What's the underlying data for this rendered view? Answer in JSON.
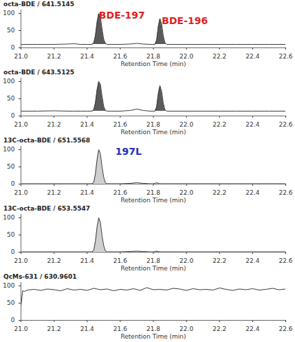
{
  "chart_data": [
    {
      "type": "line",
      "title": "octa-BDE / 641.5145",
      "x_label": "Retention Time (min)",
      "x": [
        21.0,
        21.1,
        21.2,
        21.28,
        21.32,
        21.36,
        21.4,
        21.43,
        21.44,
        21.45,
        21.46,
        21.47,
        21.48,
        21.49,
        21.5,
        21.51,
        21.52,
        21.55,
        21.6,
        21.66,
        21.7,
        21.74,
        21.78,
        21.8,
        21.81,
        21.82,
        21.83,
        21.84,
        21.85,
        21.86,
        21.87,
        21.88,
        21.92,
        22.0,
        22.1,
        22.2,
        22.3,
        22.4,
        22.5,
        22.6
      ],
      "values": [
        10,
        10,
        10,
        11,
        12,
        10,
        10,
        10,
        14,
        35,
        75,
        100,
        90,
        55,
        25,
        13,
        10,
        10,
        10,
        11,
        13,
        11,
        10,
        10,
        10,
        22,
        62,
        85,
        70,
        35,
        15,
        10,
        10,
        10,
        10,
        10,
        10,
        10,
        10,
        10
      ],
      "filled_ranges": [
        [
          21.43,
          21.52
        ],
        [
          21.81,
          21.88
        ]
      ],
      "color": "#5a5a5a",
      "xlim": [
        21.0,
        22.6
      ],
      "xticks": [
        {
          "value": 21.0,
          "label": "21.0"
        },
        {
          "value": 21.2,
          "label": "21.2"
        },
        {
          "value": 21.4,
          "label": "21.4"
        },
        {
          "value": 21.6,
          "label": "21.6"
        },
        {
          "value": 21.8,
          "label": "21.8"
        },
        {
          "value": 22.0,
          "label": "22.0"
        },
        {
          "value": 22.2,
          "label": "22.2"
        },
        {
          "value": 22.4,
          "label": "22.4"
        },
        {
          "value": 22.6,
          "label": "22.6"
        }
      ],
      "ylim": [
        0,
        110
      ],
      "yticks": [
        0,
        50,
        100
      ],
      "annotations": [
        {
          "text": "BDE-197",
          "x": 21.61,
          "y": 94,
          "color": "#e02020"
        },
        {
          "text": "BDE-196",
          "x": 21.99,
          "y": 78,
          "color": "#e02020"
        }
      ]
    },
    {
      "type": "line",
      "title": "octa-BDE / 643.5125",
      "x_label": "Retention Time (min)",
      "x": [
        21.0,
        21.1,
        21.2,
        21.28,
        21.32,
        21.36,
        21.4,
        21.43,
        21.44,
        21.45,
        21.46,
        21.47,
        21.48,
        21.49,
        21.5,
        21.51,
        21.52,
        21.55,
        21.6,
        21.66,
        21.7,
        21.74,
        21.78,
        21.8,
        21.81,
        21.82,
        21.83,
        21.84,
        21.85,
        21.86,
        21.87,
        21.88,
        21.92,
        22.0,
        22.1,
        22.2,
        22.3,
        22.4,
        22.5,
        22.6
      ],
      "values": [
        14,
        14,
        15,
        14,
        14,
        14,
        14,
        14,
        18,
        38,
        76,
        100,
        92,
        58,
        28,
        16,
        14,
        14,
        14,
        16,
        20,
        16,
        14,
        14,
        14,
        26,
        65,
        88,
        72,
        38,
        18,
        14,
        14,
        14,
        14,
        14,
        14,
        14,
        14,
        14
      ],
      "filled_ranges": [
        [
          21.43,
          21.52
        ],
        [
          21.81,
          21.88
        ]
      ],
      "color": "#5a5a5a",
      "xlim": [
        21.0,
        22.6
      ],
      "xticks": [
        {
          "value": 21.0,
          "label": "21.0"
        },
        {
          "value": 21.2,
          "label": "21.2"
        },
        {
          "value": 21.4,
          "label": "21.4"
        },
        {
          "value": 21.6,
          "label": "21.6"
        },
        {
          "value": 21.8,
          "label": "21.8"
        },
        {
          "value": 22.0,
          "label": "22.0"
        },
        {
          "value": 22.2,
          "label": "22.2"
        },
        {
          "value": 22.4,
          "label": "22.4"
        },
        {
          "value": 22.6,
          "label": "22.6"
        }
      ],
      "ylim": [
        0,
        110
      ],
      "yticks": [
        0,
        50,
        100
      ]
    },
    {
      "type": "line",
      "title": "13C-octa-BDE / 651.5568",
      "x_label": "Retention Time (min)",
      "x": [
        21.0,
        21.1,
        21.2,
        21.28,
        21.32,
        21.36,
        21.4,
        21.43,
        21.44,
        21.45,
        21.46,
        21.47,
        21.48,
        21.49,
        21.5,
        21.51,
        21.52,
        21.55,
        21.6,
        21.66,
        21.7,
        21.74,
        21.78,
        21.8,
        21.81,
        21.82,
        21.83,
        21.84,
        21.85,
        21.86,
        21.87,
        21.88,
        21.92,
        22.0,
        22.1,
        22.2,
        22.3,
        22.4,
        22.5,
        22.6
      ],
      "values": [
        1,
        1,
        1,
        1,
        1,
        1,
        1,
        1,
        5,
        30,
        72,
        100,
        88,
        50,
        20,
        4,
        1,
        1,
        1,
        2,
        4,
        2,
        1,
        1,
        2,
        4,
        2,
        1,
        1,
        1,
        1,
        1,
        1,
        1,
        1,
        1,
        1,
        1,
        1,
        1
      ],
      "filled_ranges": [
        [
          21.43,
          21.52
        ]
      ],
      "color": "#cfcfcf",
      "xlim": [
        21.0,
        22.6
      ],
      "xticks": [
        {
          "value": 21.0,
          "label": "21.0"
        },
        {
          "value": 21.2,
          "label": "21.2"
        },
        {
          "value": 21.4,
          "label": "21.4"
        },
        {
          "value": 21.6,
          "label": "21.6"
        },
        {
          "value": 21.8,
          "label": "21.8"
        },
        {
          "value": 22.0,
          "label": "22.0"
        },
        {
          "value": 22.2,
          "label": "22.2"
        },
        {
          "value": 22.4,
          "label": "22.4"
        },
        {
          "value": 22.6,
          "label": "22.6"
        }
      ],
      "ylim": [
        0,
        110
      ],
      "yticks": [
        0,
        50,
        100
      ],
      "annotations": [
        {
          "text": "197L",
          "x": 21.65,
          "y": 94,
          "color": "#2030c0"
        }
      ]
    },
    {
      "type": "line",
      "title": "13C-octa-BDE / 653.5547",
      "x_label": "Retention Time (min)",
      "x": [
        21.0,
        21.1,
        21.2,
        21.28,
        21.32,
        21.36,
        21.4,
        21.43,
        21.44,
        21.45,
        21.46,
        21.47,
        21.48,
        21.49,
        21.5,
        21.51,
        21.52,
        21.55,
        21.6,
        21.66,
        21.7,
        21.74,
        21.78,
        21.8,
        21.81,
        21.82,
        21.83,
        21.84,
        21.85,
        21.86,
        21.87,
        21.88,
        21.92,
        22.0,
        22.1,
        22.2,
        22.3,
        22.4,
        22.5,
        22.6
      ],
      "values": [
        1,
        1,
        1,
        1,
        1,
        1,
        1,
        1,
        6,
        32,
        74,
        100,
        86,
        48,
        19,
        4,
        1,
        1,
        1,
        2,
        3,
        2,
        1,
        1,
        2,
        3,
        2,
        1,
        1,
        1,
        1,
        1,
        1,
        1,
        1,
        1,
        1,
        1,
        1,
        1
      ],
      "filled_ranges": [
        [
          21.43,
          21.52
        ]
      ],
      "color": "#cfcfcf",
      "xlim": [
        21.0,
        22.6
      ],
      "xticks": [
        {
          "value": 21.0,
          "label": "21.0"
        },
        {
          "value": 21.2,
          "label": "21.2"
        },
        {
          "value": 21.4,
          "label": "21.4"
        },
        {
          "value": 21.6,
          "label": "21.6"
        },
        {
          "value": 21.8,
          "label": "21.8"
        },
        {
          "value": 22.0,
          "label": "22.0"
        },
        {
          "value": 22.2,
          "label": "22.2"
        },
        {
          "value": 22.4,
          "label": "22.4"
        },
        {
          "value": 22.6,
          "label": "22.6"
        }
      ],
      "ylim": [
        0,
        110
      ],
      "yticks": [
        0,
        50,
        100
      ]
    },
    {
      "type": "line",
      "title": "QcMs-631 / 630.9601",
      "x_label": "Retention Time (min)",
      "x": [
        21.0,
        21.01,
        21.02,
        21.04,
        21.08,
        21.12,
        21.16,
        21.2,
        21.24,
        21.28,
        21.32,
        21.36,
        21.4,
        21.44,
        21.48,
        21.52,
        21.56,
        21.6,
        21.64,
        21.68,
        21.72,
        21.76,
        21.8,
        21.84,
        21.88,
        21.92,
        21.96,
        22.0,
        22.04,
        22.08,
        22.12,
        22.16,
        22.2,
        22.24,
        22.28,
        22.32,
        22.36,
        22.4,
        22.44,
        22.48,
        22.52,
        22.56,
        22.6
      ],
      "values": [
        40,
        86,
        84,
        88,
        90,
        87,
        91,
        89,
        86,
        92,
        88,
        90,
        87,
        93,
        89,
        91,
        86,
        90,
        88,
        92,
        87,
        95,
        89,
        90,
        88,
        93,
        91,
        87,
        92,
        89,
        90,
        88,
        94,
        90,
        87,
        91,
        89,
        92,
        88,
        90,
        93,
        89,
        91
      ],
      "xlim": [
        21.0,
        22.6
      ],
      "xticks": [
        {
          "value": 21.0,
          "label": "21.0"
        },
        {
          "value": 21.2,
          "label": "21.2"
        },
        {
          "value": 21.4,
          "label": "21.4"
        },
        {
          "value": 21.6,
          "label": "21.6"
        },
        {
          "value": 21.8,
          "label": "21.8"
        },
        {
          "value": 22.0,
          "label": "22.0"
        },
        {
          "value": 22.2,
          "label": "22.2"
        },
        {
          "value": 22.4,
          "label": "22.4"
        },
        {
          "value": 22.6,
          "label": "22.6"
        }
      ],
      "ylim": [
        0,
        110
      ],
      "yticks": [
        0,
        50,
        100
      ]
    }
  ]
}
